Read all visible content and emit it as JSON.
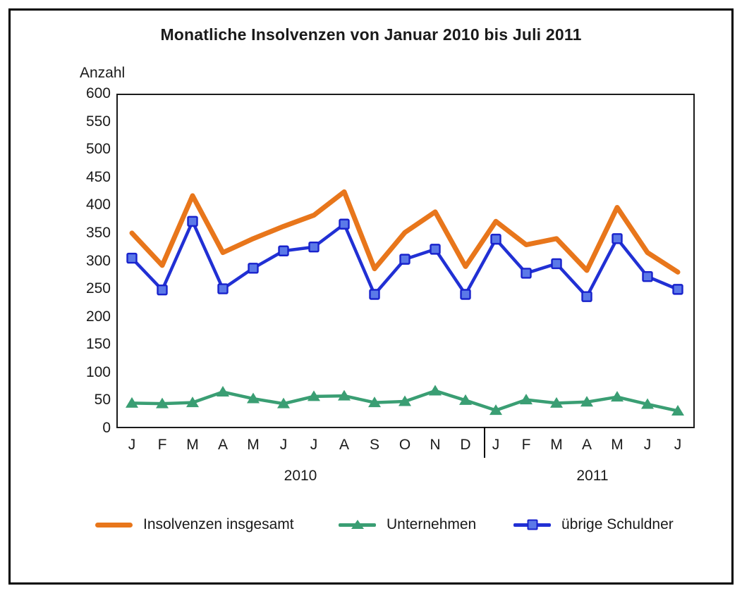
{
  "title": "Monatliche Insolvenzen von Januar 2010 bis Juli 2011",
  "y_axis": {
    "label": "Anzahl"
  },
  "x_axis": {
    "year_left": "2010",
    "year_right": "2011"
  },
  "colors": {
    "total_line": "#E8761B",
    "companies_line": "#3A9E73",
    "other_line": "#2130D4",
    "other_marker_fill": "#5B79E8",
    "other_marker_stroke": "#1822CC",
    "frame": "#1b1b1b"
  },
  "chart_data": {
    "type": "line",
    "title": "Monatliche Insolvenzen von Januar 2010 bis Juli 2011",
    "xlabel": "",
    "ylabel": "Anzahl",
    "ylim": [
      0,
      600
    ],
    "ytick_step": 50,
    "grid": false,
    "legend_position": "bottom",
    "categories": [
      "J",
      "F",
      "M",
      "A",
      "M",
      "J",
      "J",
      "A",
      "S",
      "O",
      "N",
      "D",
      "J",
      "F",
      "M",
      "A",
      "M",
      "J",
      "J"
    ],
    "category_years": [
      {
        "label": "2010",
        "from_index": 0,
        "to_index": 11
      },
      {
        "label": "2011",
        "from_index": 12,
        "to_index": 18
      }
    ],
    "series": [
      {
        "name": "Insolvenzen insgesamt",
        "marker": "none",
        "color": "#E8761B",
        "values": [
          350,
          292,
          417,
          315,
          340,
          362,
          382,
          424,
          286,
          351,
          388,
          290,
          371,
          329,
          340,
          283,
          396,
          315,
          280
        ]
      },
      {
        "name": "Unternehmen",
        "marker": "triangle",
        "color": "#3A9E73",
        "values": [
          45,
          44,
          46,
          65,
          53,
          44,
          57,
          58,
          46,
          48,
          67,
          50,
          32,
          51,
          45,
          47,
          56,
          43,
          31
        ]
      },
      {
        "name": "übrige Schuldner",
        "marker": "square",
        "color": "#2130D4",
        "values": [
          305,
          248,
          371,
          250,
          287,
          318,
          325,
          366,
          240,
          303,
          321,
          240,
          339,
          278,
          295,
          236,
          340,
          272,
          249
        ]
      }
    ]
  }
}
